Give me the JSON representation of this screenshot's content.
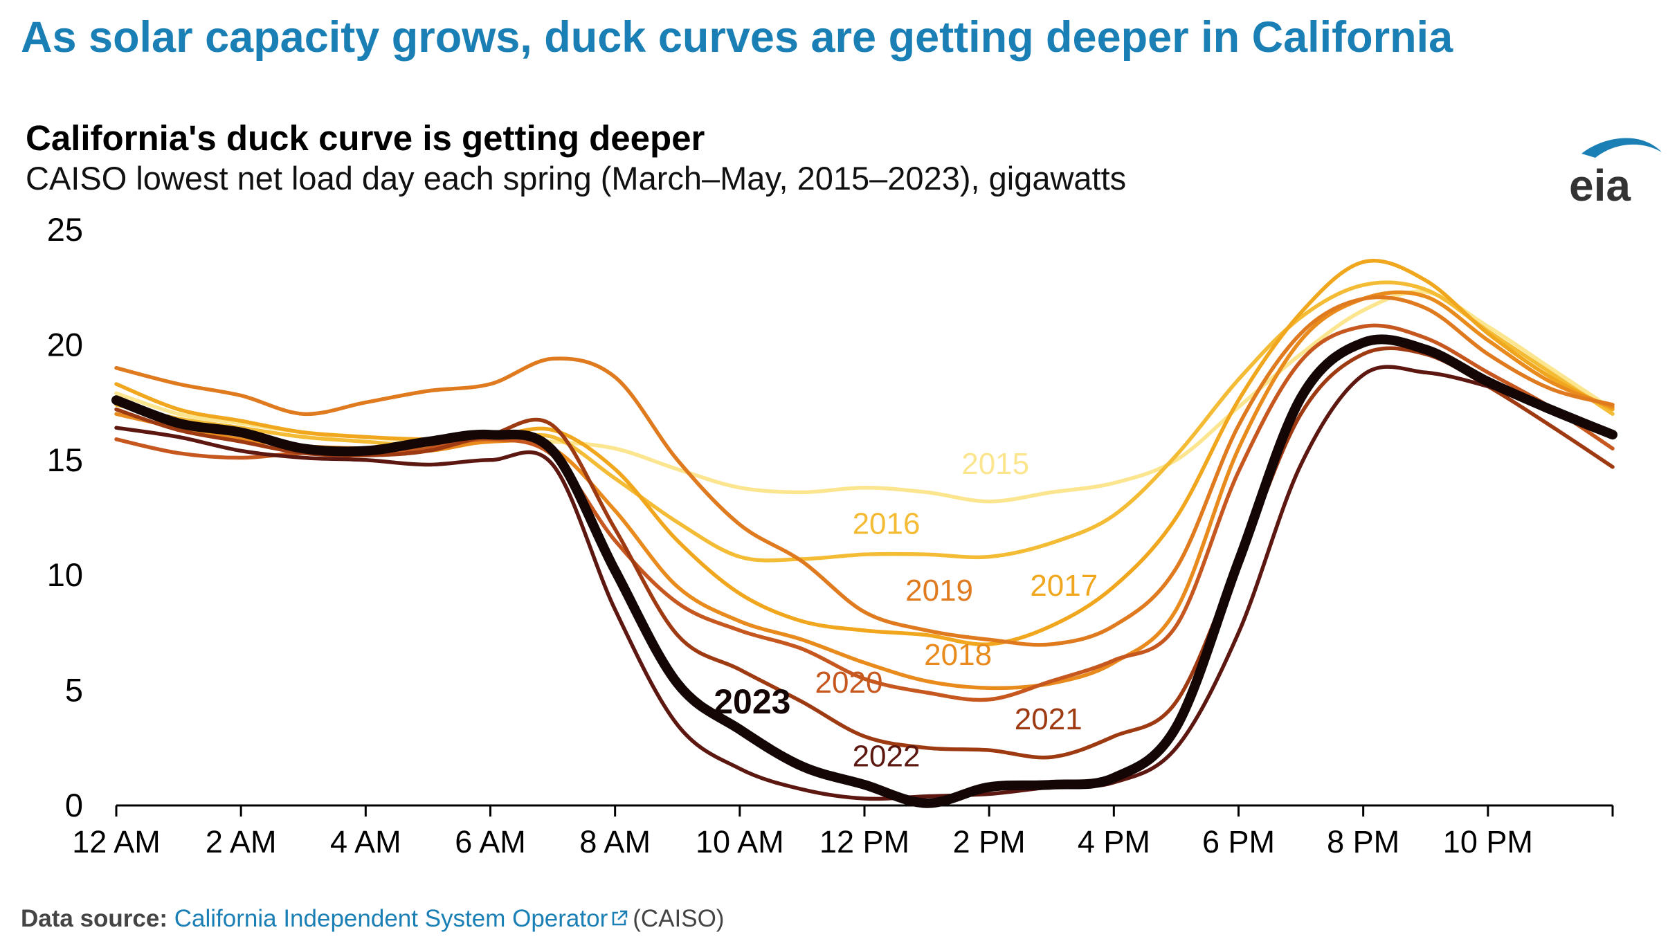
{
  "header": {
    "headline": "As solar capacity grows, duck curves are getting deeper in California"
  },
  "logo": {
    "text": "eia",
    "icon": "eia-swoosh-logo",
    "color": "#1a7fb5"
  },
  "chart_data": {
    "type": "line",
    "title": "California's duck curve is getting deeper",
    "subtitle": "CAISO lowest net load day each spring (March–May, 2015–2023), gigawatts",
    "xlabel": "",
    "ylabel": "",
    "xlim": [
      0,
      24
    ],
    "ylim": [
      0,
      25
    ],
    "yticks": [
      0,
      5,
      10,
      15,
      20,
      25
    ],
    "xticks": [
      {
        "h": 0,
        "label": "12 AM"
      },
      {
        "h": 2,
        "label": "2 AM"
      },
      {
        "h": 4,
        "label": "4 AM"
      },
      {
        "h": 6,
        "label": "6 AM"
      },
      {
        "h": 8,
        "label": "8 AM"
      },
      {
        "h": 10,
        "label": "10 AM"
      },
      {
        "h": 12,
        "label": "12 PM"
      },
      {
        "h": 14,
        "label": "2 PM"
      },
      {
        "h": 16,
        "label": "4 PM"
      },
      {
        "h": 18,
        "label": "6 PM"
      },
      {
        "h": 20,
        "label": "8 PM"
      },
      {
        "h": 22,
        "label": "10 PM"
      }
    ],
    "legend": "inline labels",
    "series": [
      {
        "name": "2015",
        "color": "#fbe58e",
        "x": [
          0,
          1,
          2,
          3,
          4,
          5,
          6,
          7,
          8,
          9,
          10,
          11,
          12,
          13,
          14,
          15,
          16,
          17,
          18,
          19,
          20,
          21,
          22,
          23,
          24
        ],
        "y": [
          17.9,
          17.0,
          16.6,
          16.2,
          16.0,
          15.8,
          15.9,
          15.8,
          15.5,
          14.6,
          13.8,
          13.6,
          13.8,
          13.6,
          13.2,
          13.6,
          14.0,
          15.0,
          17.3,
          19.6,
          21.5,
          22.3,
          20.8,
          19.0,
          17.2
        ]
      },
      {
        "name": "2016",
        "color": "#f4bb35",
        "x": [
          0,
          1,
          2,
          3,
          4,
          5,
          6,
          7,
          8,
          9,
          10,
          11,
          12,
          13,
          14,
          15,
          16,
          17,
          18,
          19,
          20,
          21,
          22,
          23,
          24
        ],
        "y": [
          17.4,
          16.8,
          16.4,
          16.0,
          15.8,
          15.6,
          15.8,
          16.0,
          14.2,
          12.3,
          10.8,
          10.7,
          10.9,
          10.9,
          10.8,
          11.4,
          12.6,
          15.2,
          18.5,
          21.2,
          22.6,
          22.4,
          20.6,
          18.8,
          17.0
        ]
      },
      {
        "name": "2017",
        "color": "#f0a61d",
        "x": [
          0,
          1,
          2,
          3,
          4,
          5,
          6,
          7,
          8,
          9,
          10,
          11,
          12,
          13,
          14,
          15,
          16,
          17,
          18,
          19,
          20,
          21,
          22,
          23,
          24
        ],
        "y": [
          18.3,
          17.2,
          16.7,
          16.2,
          16.0,
          15.9,
          16.0,
          16.3,
          14.6,
          11.5,
          9.2,
          8.0,
          7.6,
          7.4,
          7.0,
          7.8,
          9.5,
          12.5,
          17.6,
          21.4,
          23.6,
          22.8,
          20.5,
          18.6,
          17.2
        ]
      },
      {
        "name": "2018",
        "color": "#e98a1d",
        "x": [
          0,
          1,
          2,
          3,
          4,
          5,
          6,
          7,
          8,
          9,
          10,
          11,
          12,
          13,
          14,
          15,
          16,
          17,
          18,
          19,
          20,
          21,
          22,
          23,
          24
        ],
        "y": [
          17.0,
          16.4,
          15.9,
          15.6,
          15.5,
          15.4,
          15.8,
          15.5,
          12.8,
          9.5,
          8.0,
          7.2,
          6.2,
          5.4,
          5.1,
          5.3,
          6.2,
          8.5,
          15.5,
          20.2,
          22.0,
          22.1,
          20.2,
          18.4,
          17.3
        ]
      },
      {
        "name": "2019",
        "color": "#e07a1f",
        "x": [
          0,
          1,
          2,
          3,
          4,
          5,
          6,
          7,
          8,
          9,
          10,
          11,
          12,
          13,
          14,
          15,
          16,
          17,
          18,
          19,
          20,
          21,
          22,
          23,
          24
        ],
        "y": [
          19.0,
          18.3,
          17.8,
          17.0,
          17.5,
          18.0,
          18.3,
          19.4,
          18.6,
          15.0,
          12.2,
          10.6,
          8.4,
          7.6,
          7.2,
          7.0,
          7.8,
          10.3,
          16.5,
          20.5,
          22.0,
          21.6,
          19.6,
          18.1,
          17.4
        ]
      },
      {
        "name": "2020",
        "color": "#c6581f",
        "x": [
          0,
          1,
          2,
          3,
          4,
          5,
          6,
          7,
          8,
          9,
          10,
          11,
          12,
          13,
          14,
          15,
          16,
          17,
          18,
          19,
          20,
          21,
          22,
          23,
          24
        ],
        "y": [
          15.9,
          15.3,
          15.1,
          15.3,
          15.2,
          15.5,
          15.9,
          15.2,
          11.5,
          8.8,
          7.6,
          6.8,
          5.5,
          4.9,
          4.6,
          5.4,
          6.3,
          7.8,
          14.5,
          19.3,
          20.8,
          20.3,
          18.8,
          17.3,
          15.5
        ]
      },
      {
        "name": "2021",
        "color": "#9e3a12",
        "x": [
          0,
          1,
          2,
          3,
          4,
          5,
          6,
          7,
          8,
          9,
          10,
          11,
          12,
          13,
          14,
          15,
          16,
          17,
          18,
          19,
          20,
          21,
          22,
          23,
          24
        ],
        "y": [
          17.2,
          16.3,
          15.8,
          15.3,
          15.2,
          15.4,
          16.1,
          16.5,
          12.0,
          7.4,
          5.9,
          4.5,
          3.0,
          2.5,
          2.4,
          2.1,
          3.0,
          4.5,
          10.6,
          17.0,
          19.6,
          19.6,
          18.2,
          16.5,
          14.7
        ]
      },
      {
        "name": "2022",
        "color": "#5c1810",
        "x": [
          0,
          1,
          2,
          3,
          4,
          5,
          6,
          7,
          8,
          9,
          10,
          11,
          12,
          13,
          14,
          15,
          16,
          17,
          18,
          19,
          20,
          21,
          22,
          23,
          24
        ],
        "y": [
          16.4,
          16.0,
          15.4,
          15.1,
          15.0,
          14.8,
          15.0,
          14.8,
          8.5,
          3.5,
          1.6,
          0.7,
          0.3,
          0.4,
          0.5,
          0.8,
          1.0,
          2.5,
          7.5,
          14.8,
          18.7,
          18.8,
          18.2,
          17.3,
          16.2
        ]
      },
      {
        "name": "2023",
        "color": "#140605",
        "x": [
          0,
          1,
          2,
          3,
          4,
          5,
          6,
          7,
          8,
          9,
          10,
          11,
          12,
          13,
          14,
          15,
          16,
          17,
          18,
          19,
          20,
          21,
          22,
          23,
          24
        ],
        "y": [
          17.6,
          16.6,
          16.2,
          15.5,
          15.4,
          15.8,
          16.1,
          15.4,
          10.2,
          5.3,
          3.3,
          1.7,
          0.9,
          0.1,
          0.8,
          0.9,
          1.2,
          3.4,
          10.6,
          17.7,
          20.1,
          19.8,
          18.4,
          17.2,
          16.1
        ]
      }
    ],
    "labels": [
      {
        "text": "2015",
        "series": "2015",
        "x": 14.1,
        "y": 14.4,
        "bold": false
      },
      {
        "text": "2016",
        "series": "2016",
        "x": 12.35,
        "y": 11.8,
        "bold": false
      },
      {
        "text": "2017",
        "series": "2017",
        "x": 15.2,
        "y": 9.1,
        "bold": false
      },
      {
        "text": "2019",
        "series": "2019",
        "x": 13.2,
        "y": 8.9,
        "bold": false
      },
      {
        "text": "2018",
        "series": "2018",
        "x": 13.5,
        "y": 6.1,
        "bold": false
      },
      {
        "text": "2020",
        "series": "2020",
        "x": 11.75,
        "y": 4.9,
        "bold": false
      },
      {
        "text": "2021",
        "series": "2021",
        "x": 14.95,
        "y": 3.3,
        "bold": false
      },
      {
        "text": "2022",
        "series": "2022",
        "x": 12.35,
        "y": 1.7,
        "bold": false
      },
      {
        "text": "2023",
        "series": "2023",
        "x": 10.2,
        "y": 4.0,
        "bold": true
      }
    ]
  },
  "footer": {
    "source_label": "Data source:",
    "source_link": "California Independent System Operator",
    "source_suffix": "(CAISO)",
    "link_icon": "external-link-icon"
  }
}
